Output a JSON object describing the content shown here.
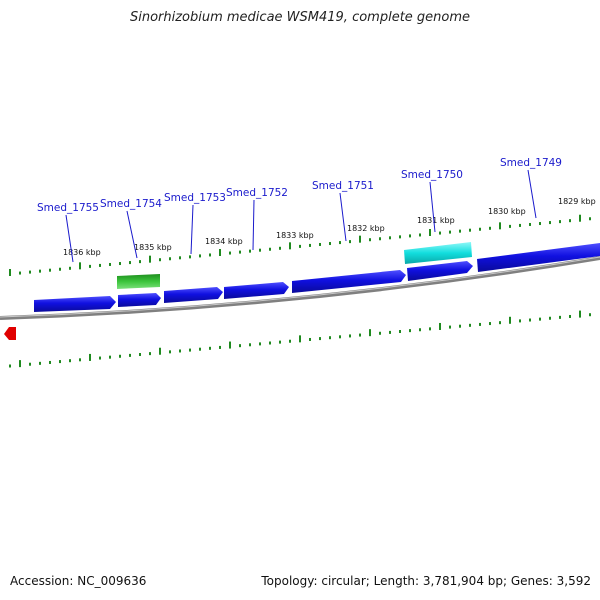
{
  "title": "Sinorhizobium medicae WSM419, complete genome",
  "accession": "Accession: NC_009636",
  "summary": "Topology: circular; Length: 3,781,904 bp; Genes: 3,592",
  "colors": {
    "gene": "#1010e0",
    "gene_highlight_cyan": "#12dede",
    "gene_highlight_green": "#2fae2f",
    "backbone": "#808080",
    "ticks": "#1f8a1f",
    "marker": "#e00000",
    "gene_label": "#1a1acc"
  },
  "kbp_labels": [
    "1836 kbp",
    "1835 kbp",
    "1834 kbp",
    "1833 kbp",
    "1832 kbp",
    "1831 kbp",
    "1830 kbp",
    "1829 kbp"
  ],
  "gene_labels": [
    "Smed_1755",
    "Smed_1754",
    "Smed_1753",
    "Smed_1752",
    "Smed_1751",
    "Smed_1750",
    "Smed_1749"
  ]
}
